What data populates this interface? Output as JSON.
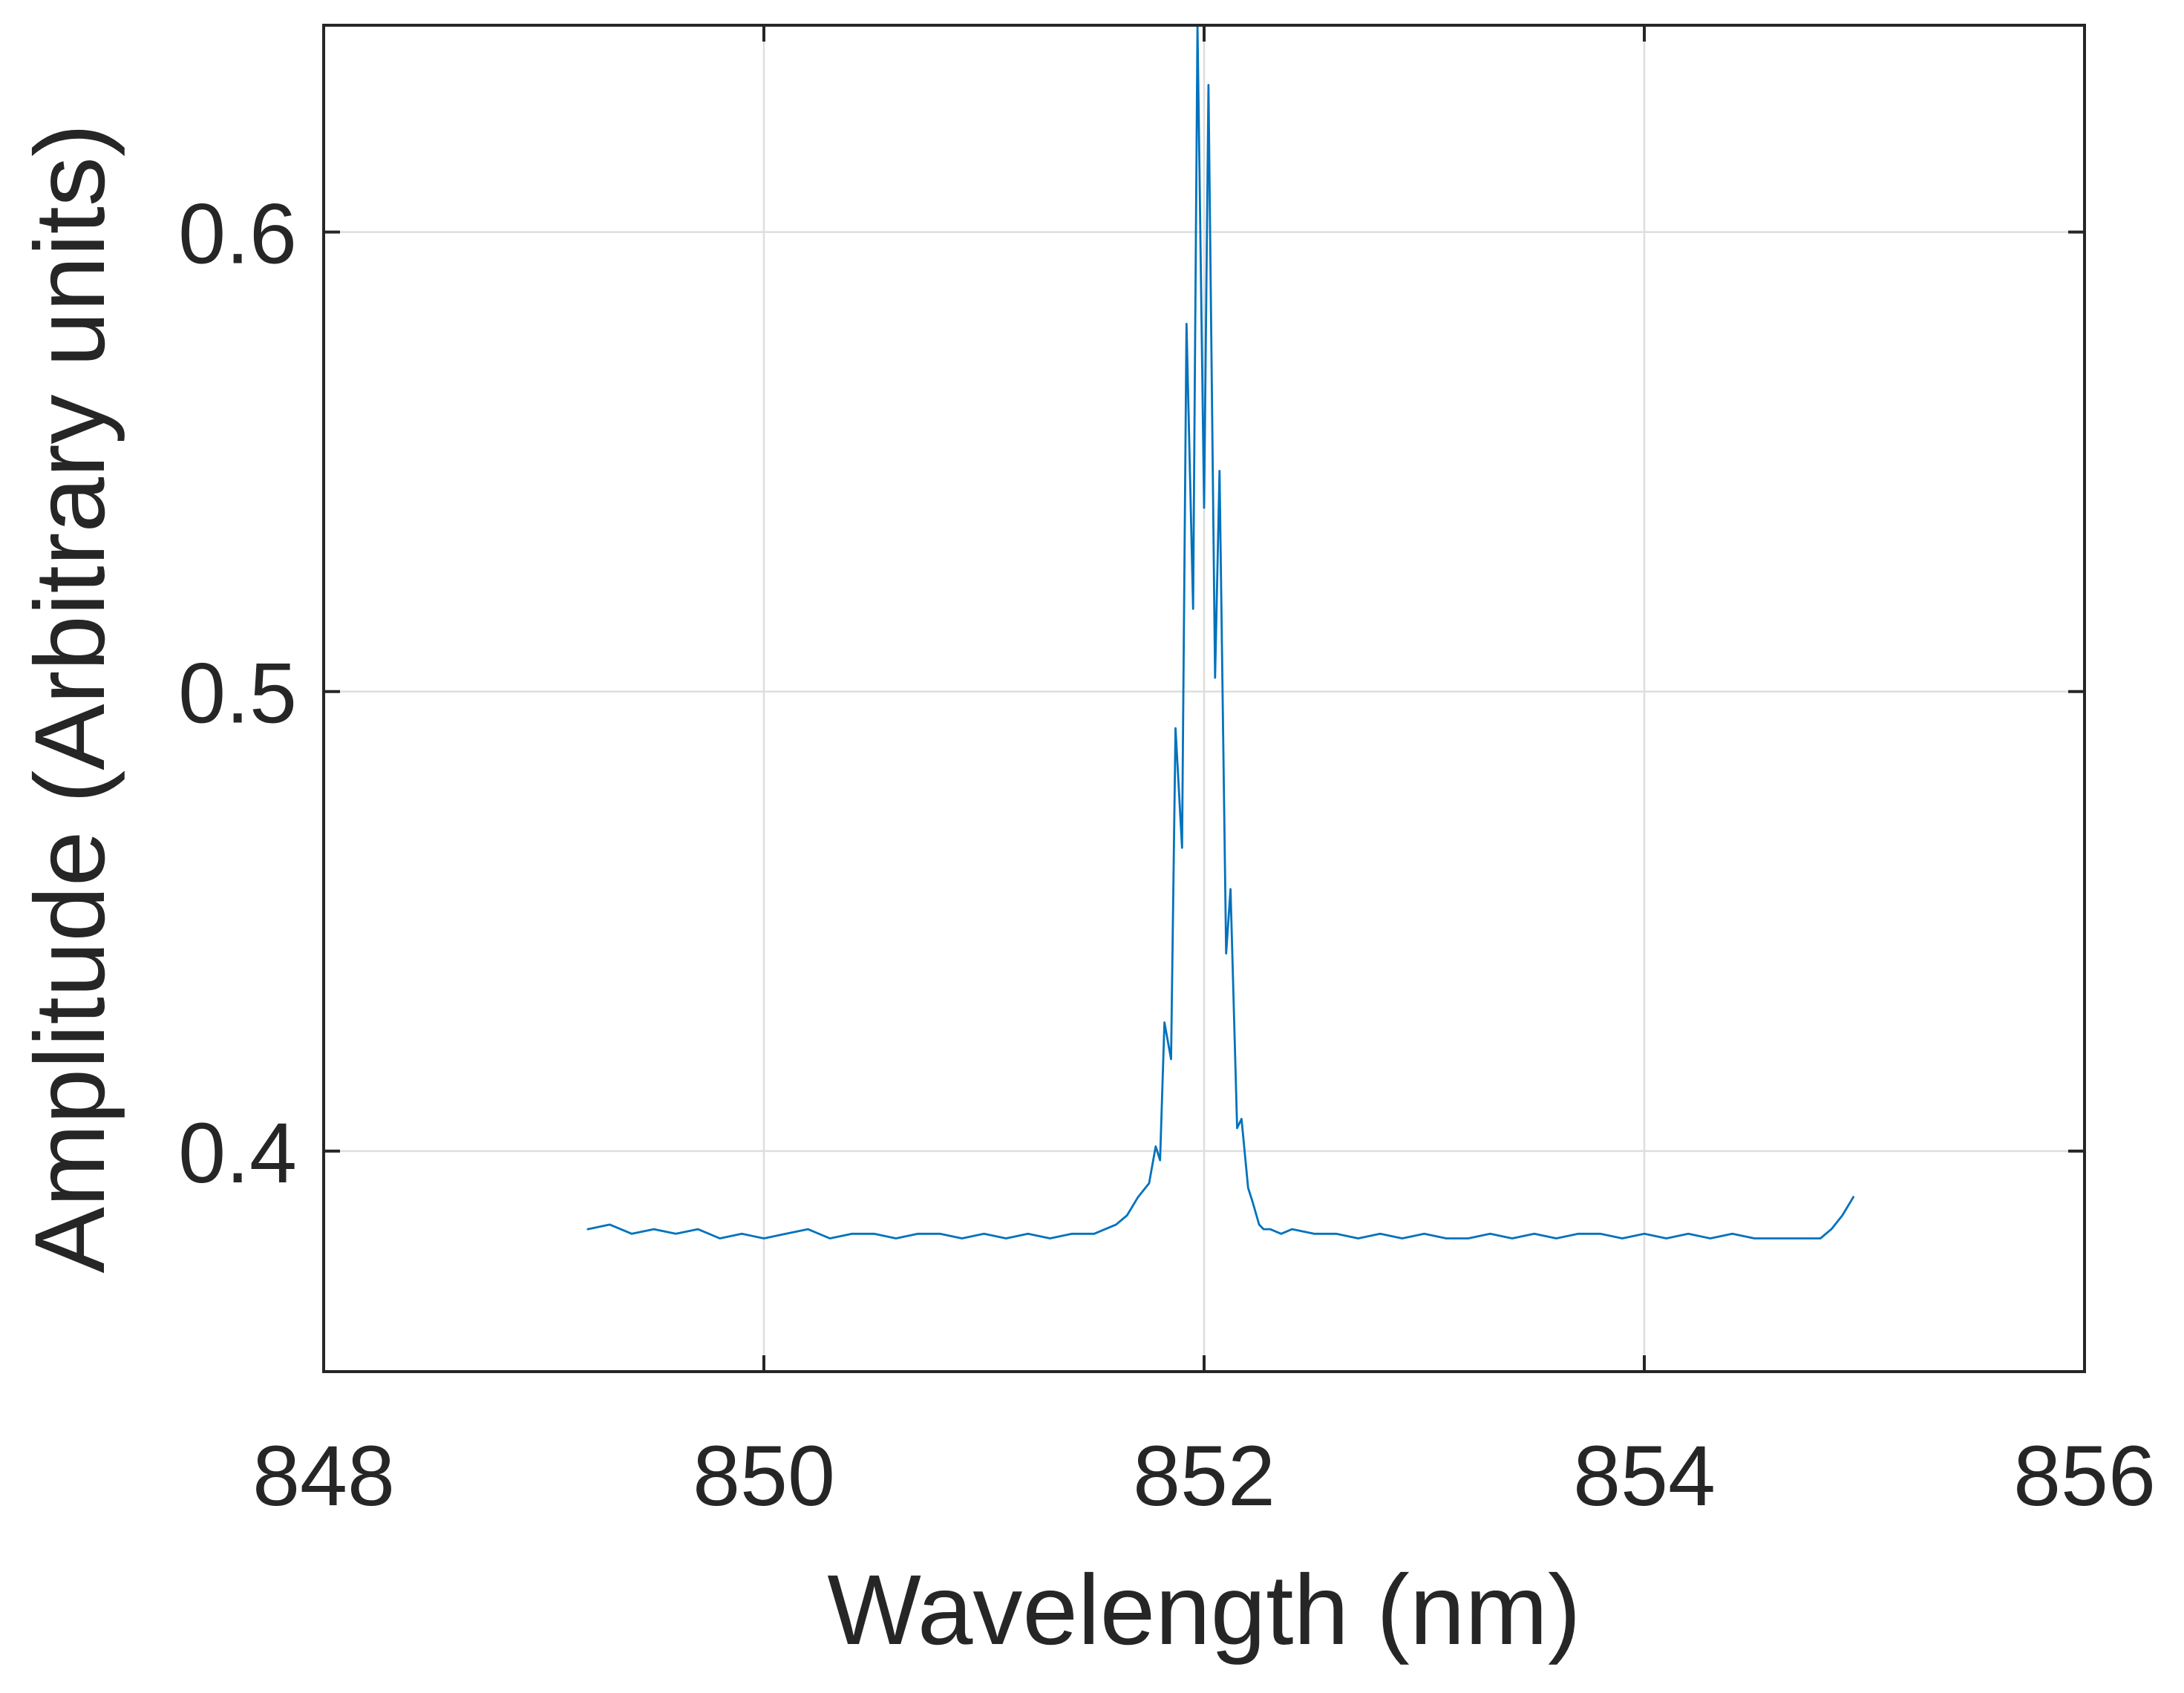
{
  "chart_data": {
    "type": "line",
    "title": "",
    "xlabel": "Wavelength (nm)",
    "ylabel": "Amplitude (Arbitrary units)",
    "xlim": [
      848,
      856
    ],
    "ylim": [
      0.352,
      0.645
    ],
    "xticks": [
      848,
      850,
      852,
      854,
      856
    ],
    "xtick_labels": [
      "848",
      "850",
      "852",
      "854",
      "856"
    ],
    "yticks": [
      0.4,
      0.5,
      0.6
    ],
    "ytick_labels": [
      "0.4",
      "0.5",
      "0.6"
    ],
    "grid": true,
    "legend": "none",
    "colors": {
      "series": "#0072bd",
      "axes": "#262626",
      "grid": "#dedede",
      "background": "#ffffff"
    },
    "series": [
      {
        "x": [
          849.2,
          849.3,
          849.4,
          849.5,
          849.6,
          849.7,
          849.8,
          849.9,
          850.0,
          850.1,
          850.2,
          850.3,
          850.4,
          850.5,
          850.6,
          850.7,
          850.8,
          850.9,
          851.0,
          851.1,
          851.2,
          851.3,
          851.4,
          851.5,
          851.6,
          851.65,
          851.7,
          851.75,
          851.78,
          851.8,
          851.82,
          851.85,
          851.87,
          851.9,
          851.92,
          851.95,
          851.97,
          852.0,
          852.02,
          852.05,
          852.07,
          852.1,
          852.12,
          852.15,
          852.17,
          852.2,
          852.22,
          852.25,
          852.27,
          852.3,
          852.35,
          852.4,
          852.5,
          852.6,
          852.7,
          852.8,
          852.9,
          853.0,
          853.1,
          853.2,
          853.3,
          853.4,
          853.5,
          853.6,
          853.7,
          853.8,
          853.9,
          854.0,
          854.1,
          854.2,
          854.3,
          854.4,
          854.5,
          854.6,
          854.7,
          854.8,
          854.85,
          854.9,
          854.95
        ],
        "y": [
          0.383,
          0.384,
          0.382,
          0.383,
          0.382,
          0.383,
          0.381,
          0.382,
          0.381,
          0.382,
          0.383,
          0.381,
          0.382,
          0.382,
          0.381,
          0.382,
          0.382,
          0.381,
          0.382,
          0.381,
          0.382,
          0.381,
          0.382,
          0.382,
          0.384,
          0.386,
          0.39,
          0.393,
          0.401,
          0.398,
          0.428,
          0.42,
          0.492,
          0.466,
          0.58,
          0.518,
          0.645,
          0.54,
          0.632,
          0.503,
          0.548,
          0.443,
          0.457,
          0.405,
          0.407,
          0.392,
          0.389,
          0.384,
          0.383,
          0.383,
          0.382,
          0.383,
          0.382,
          0.382,
          0.381,
          0.382,
          0.381,
          0.382,
          0.381,
          0.381,
          0.382,
          0.381,
          0.382,
          0.381,
          0.382,
          0.382,
          0.381,
          0.382,
          0.381,
          0.382,
          0.381,
          0.382,
          0.381,
          0.381,
          0.381,
          0.381,
          0.383,
          0.386,
          0.39
        ]
      }
    ]
  }
}
